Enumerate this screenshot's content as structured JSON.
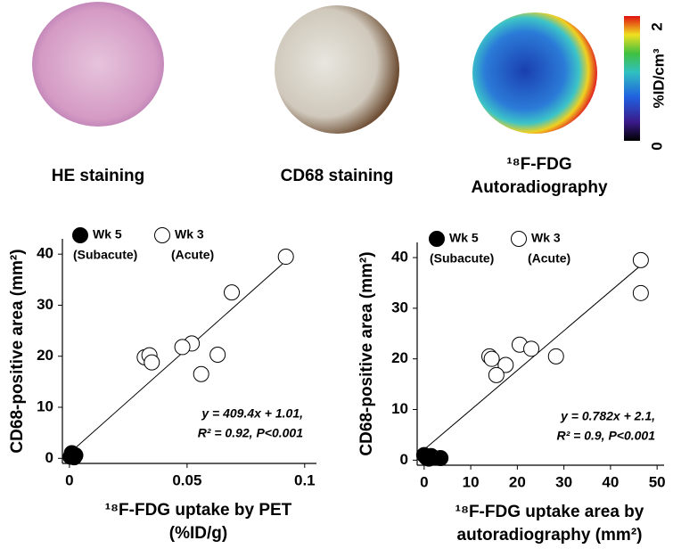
{
  "images": [
    {
      "label": [
        "HE staining"
      ]
    },
    {
      "label": [
        "CD68 staining"
      ]
    },
    {
      "label": [
        "¹⁸F-FDG",
        "Autoradiography"
      ]
    }
  ],
  "colorbar": {
    "label": "%ID/cm³",
    "ticks": [
      0,
      2
    ],
    "range": [
      0,
      2
    ]
  },
  "chart_data": [
    {
      "type": "scatter",
      "y_label": "CD68-positive area (mm²)",
      "x_label": [
        "¹⁸F-FDG uptake by PET",
        "(%ID/g)"
      ],
      "xlim": [
        -0.003,
        0.105
      ],
      "ylim": [
        -1,
        43
      ],
      "xticks": [
        0,
        0.05,
        0.1
      ],
      "yticks": [
        0,
        10,
        20,
        30,
        40
      ],
      "series": [
        {
          "name": "Wk 5",
          "note": "(Subacute)",
          "color": "#000000",
          "filled": true,
          "x": [
            0.0005,
            0.001,
            0.0015,
            0.002,
            0.0025,
            0.001,
            0.002
          ],
          "values": [
            0.3,
            0.5,
            0.8,
            0.4,
            0.6,
            1.0,
            0.2
          ]
        },
        {
          "name": "Wk 3",
          "note": "(Acute)",
          "color": "#000000",
          "filled": false,
          "x": [
            0.092,
            0.069,
            0.063,
            0.056,
            0.052,
            0.048,
            0.032,
            0.034,
            0.035
          ],
          "values": [
            39.5,
            32.5,
            20.3,
            16.5,
            22.5,
            21.8,
            19.8,
            20.2,
            18.8
          ]
        }
      ],
      "fit": {
        "slope": 409.4,
        "intercept": 1.01,
        "x": [
          0,
          0.093
        ]
      },
      "annotation": [
        "y = 409.4x + 1.01,",
        "R² = 0.92,  P<0.001"
      ]
    },
    {
      "type": "scatter",
      "y_label": "CD68-positive area (mm²)",
      "x_label": [
        "¹⁸F-FDG uptake area by",
        "autoradiography (mm²)"
      ],
      "xlim": [
        -1.5,
        51.5
      ],
      "ylim": [
        -1,
        43
      ],
      "xticks": [
        0,
        10,
        20,
        30,
        40,
        50
      ],
      "yticks": [
        0,
        10,
        20,
        30,
        40
      ],
      "series": [
        {
          "name": "Wk 5",
          "note": "(Subacute)",
          "color": "#000000",
          "filled": true,
          "x": [
            0,
            0.5,
            1,
            1.5,
            2,
            3.5
          ],
          "values": [
            1,
            0.5,
            0.3,
            0.8,
            0.5,
            0.4
          ]
        },
        {
          "name": "Wk 3",
          "note": "(Acute)",
          "color": "#000000",
          "filled": false,
          "x": [
            46.5,
            46.5,
            28.3,
            20.5,
            23,
            17.5,
            15.5,
            14,
            14.5
          ],
          "values": [
            39.5,
            33,
            20.5,
            22.8,
            22,
            18.8,
            16.8,
            20.5,
            20
          ]
        }
      ],
      "fit": {
        "slope": 0.782,
        "intercept": 2.1,
        "x": [
          0,
          47
        ]
      },
      "annotation": [
        "y = 0.782x + 2.1,",
        "R² = 0.9, P<0.001"
      ]
    }
  ]
}
